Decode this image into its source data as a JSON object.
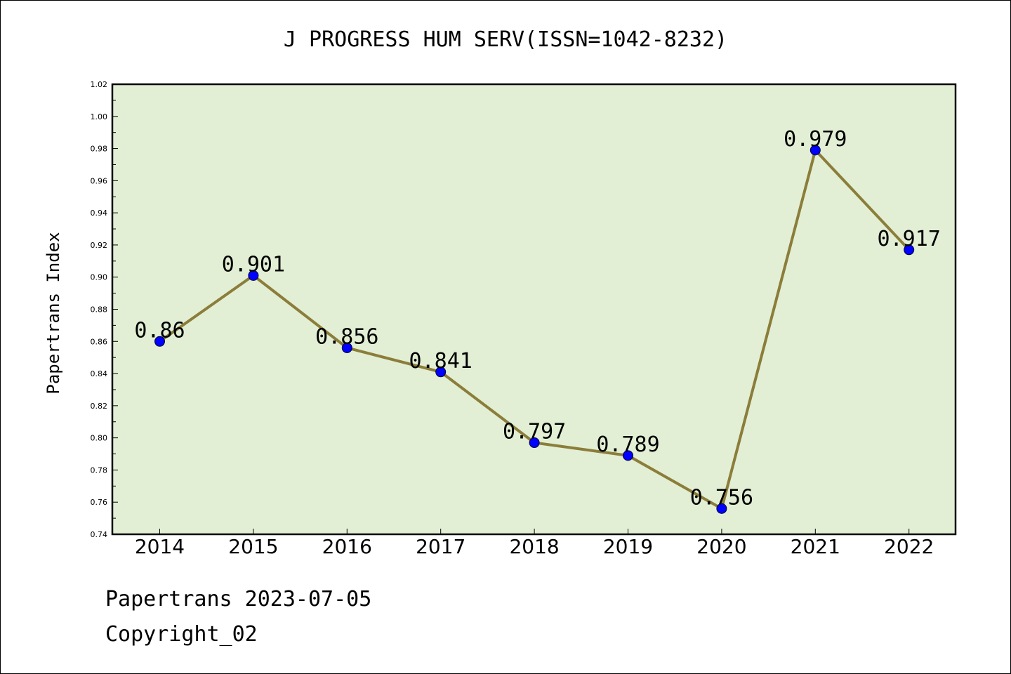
{
  "chart_data": {
    "type": "line",
    "title": "J PROGRESS HUM SERV(ISSN=1042-8232)",
    "xlabel": "",
    "ylabel": "Papertrans Index",
    "categories": [
      "2014",
      "2015",
      "2016",
      "2017",
      "2018",
      "2019",
      "2020",
      "2021",
      "2022"
    ],
    "series": [
      {
        "values": [
          0.86,
          0.901,
          0.856,
          0.841,
          0.797,
          0.789,
          0.756,
          0.979,
          0.917
        ],
        "data_labels": [
          "0.86",
          "0.901",
          "0.856",
          "0.841",
          "0.797",
          "0.789",
          "0.756",
          "0.979",
          "0.917"
        ]
      }
    ],
    "ylim": [
      0.74,
      1.02
    ],
    "yticks": [
      "0.74",
      "0.76",
      "0.78",
      "0.80",
      "0.82",
      "0.84",
      "0.86",
      "0.88",
      "0.90",
      "0.92",
      "0.94",
      "0.96",
      "0.98",
      "1.00",
      "1.02"
    ],
    "grid": false,
    "legend": "none",
    "colors": {
      "plot_background": "#e2efd4",
      "line": "#8b7d3a",
      "marker": "#0000ff",
      "axis": "#000000"
    }
  },
  "footer": {
    "line1": "Papertrans 2023-07-05",
    "line2": "Copyright_02"
  }
}
